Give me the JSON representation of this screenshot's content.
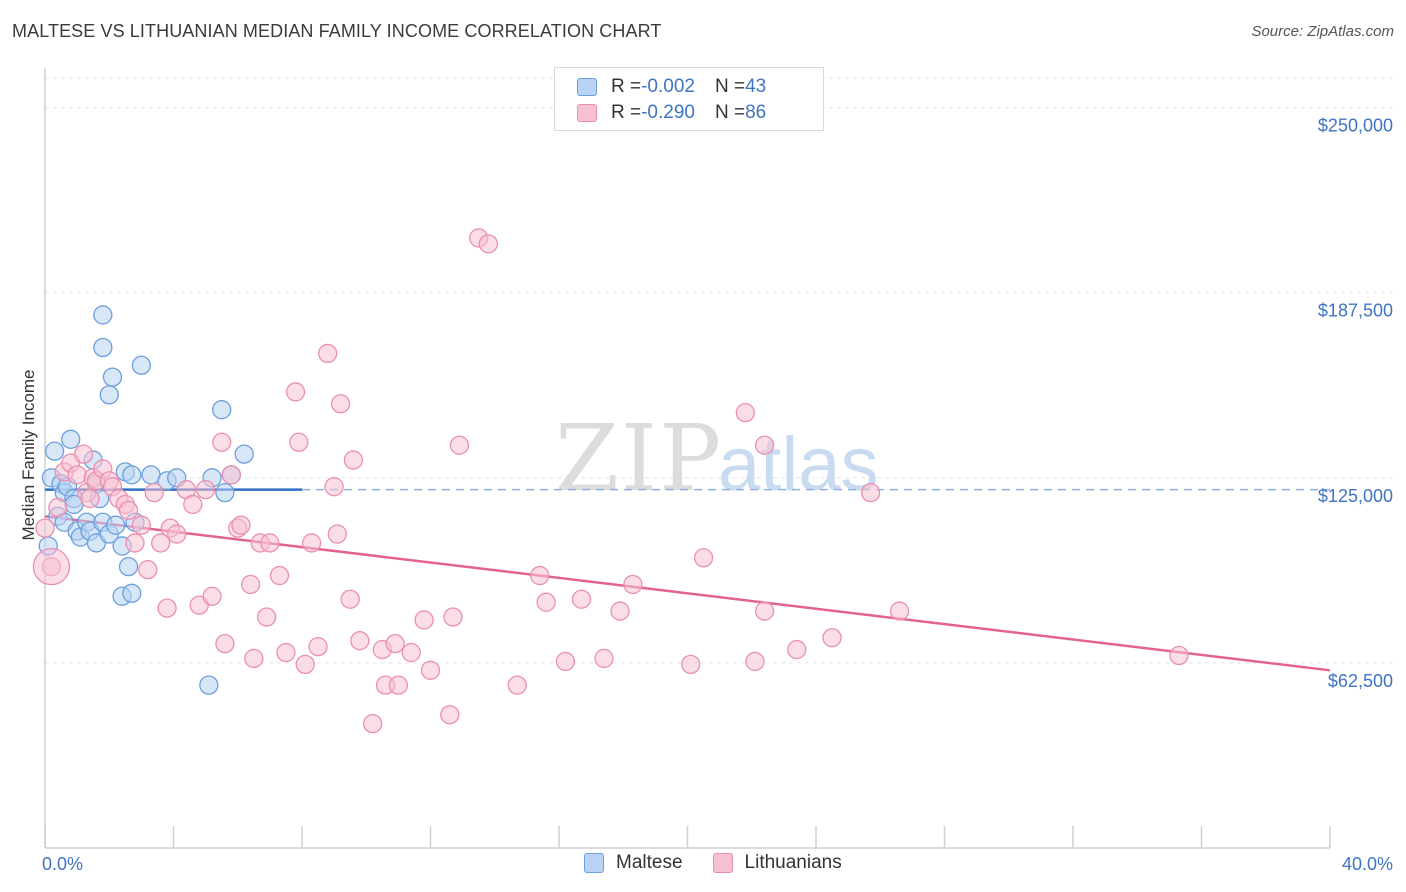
{
  "title": "MALTESE VS LITHUANIAN MEDIAN FAMILY INCOME CORRELATION CHART",
  "source": "Source: ZipAtlas.com",
  "watermark": {
    "zip": "ZIP",
    "atlas": "atlas"
  },
  "legend": {
    "rows": [
      {
        "r_label": "R = ",
        "r_value": "-0.002",
        "n_label": "N = ",
        "n_value": "43"
      },
      {
        "r_label": "R = ",
        "r_value": "-0.290",
        "n_label": "N = ",
        "n_value": "86"
      }
    ]
  },
  "colors": {
    "blue_fill": "#b8d3f3",
    "blue_stroke": "#6b9fdd",
    "blue_line": "#2f6fc4",
    "pink_fill": "#f7c1d2",
    "pink_stroke": "#ea8fb0",
    "pink_line": "#e2638f",
    "tick_text": "#3f74c4",
    "grid": "#e3e3e3"
  },
  "chart_data": {
    "type": "scatter",
    "title": "MALTESE VS LITHUANIAN MEDIAN FAMILY INCOME CORRELATION CHART",
    "xlabel": "",
    "ylabel": "Median Family Income",
    "xlim": [
      0,
      40
    ],
    "ylim": [
      0,
      260000
    ],
    "x_tick_labels": [
      "0.0%",
      "40.0%"
    ],
    "y_ticks": [
      62500,
      125000,
      187500,
      250000
    ],
    "y_tick_labels": [
      "$62,500",
      "$125,000",
      "$187,500",
      "$250,000"
    ],
    "grid": true,
    "legend_position": "top-center",
    "series": [
      {
        "name": "Maltese",
        "trend": {
          "x0": 0.0,
          "y0": 121000,
          "x1": 8.0,
          "y1": 121000,
          "dashed_to": 40.0
        },
        "points": [
          [
            0.1,
            102000
          ],
          [
            0.2,
            125000
          ],
          [
            0.3,
            134000
          ],
          [
            0.4,
            112000
          ],
          [
            0.5,
            123000
          ],
          [
            0.6,
            110000
          ],
          [
            0.6,
            120000
          ],
          [
            0.7,
            122000
          ],
          [
            0.8,
            138000
          ],
          [
            0.9,
            118000
          ],
          [
            1.0,
            107000
          ],
          [
            1.1,
            105000
          ],
          [
            1.3,
            110000
          ],
          [
            1.4,
            107000
          ],
          [
            1.5,
            131000
          ],
          [
            1.6,
            103000
          ],
          [
            1.6,
            123000
          ],
          [
            1.7,
            118000
          ],
          [
            1.8,
            110000
          ],
          [
            1.8,
            169000
          ],
          [
            2.0,
            106000
          ],
          [
            2.1,
            159000
          ],
          [
            2.2,
            109000
          ],
          [
            2.4,
            85000
          ],
          [
            2.4,
            102000
          ],
          [
            2.5,
            127000
          ],
          [
            2.6,
            95000
          ],
          [
            2.7,
            86000
          ],
          [
            2.8,
            110000
          ],
          [
            3.0,
            163000
          ],
          [
            3.3,
            126000
          ],
          [
            3.8,
            124000
          ],
          [
            4.1,
            125000
          ],
          [
            5.1,
            55000
          ],
          [
            5.2,
            125000
          ],
          [
            5.5,
            148000
          ],
          [
            5.6,
            120000
          ],
          [
            5.8,
            126000
          ],
          [
            6.2,
            133000
          ],
          [
            1.8,
            180000
          ],
          [
            2.0,
            153000
          ],
          [
            0.9,
            116000
          ],
          [
            2.7,
            126000
          ]
        ]
      },
      {
        "name": "Lithuanians",
        "trend": {
          "x0": 0.0,
          "y0": 112000,
          "x1": 40.0,
          "y1": 60000
        },
        "points": [
          [
            0.2,
            95000
          ],
          [
            0.4,
            115000
          ],
          [
            0.6,
            127000
          ],
          [
            0.8,
            130000
          ],
          [
            1.0,
            126000
          ],
          [
            1.2,
            133000
          ],
          [
            1.3,
            120000
          ],
          [
            1.5,
            125000
          ],
          [
            1.6,
            124000
          ],
          [
            1.8,
            128000
          ],
          [
            2.0,
            124000
          ],
          [
            2.1,
            122000
          ],
          [
            2.3,
            118000
          ],
          [
            2.5,
            116000
          ],
          [
            2.6,
            114000
          ],
          [
            2.8,
            103000
          ],
          [
            3.0,
            109000
          ],
          [
            3.2,
            94000
          ],
          [
            3.4,
            120000
          ],
          [
            3.6,
            103000
          ],
          [
            3.8,
            81000
          ],
          [
            3.9,
            108000
          ],
          [
            4.1,
            106000
          ],
          [
            4.4,
            121000
          ],
          [
            4.6,
            116000
          ],
          [
            4.8,
            82000
          ],
          [
            5.0,
            121000
          ],
          [
            5.2,
            85000
          ],
          [
            5.5,
            137000
          ],
          [
            5.6,
            69000
          ],
          [
            5.8,
            126000
          ],
          [
            6.0,
            108000
          ],
          [
            6.1,
            109000
          ],
          [
            6.4,
            89000
          ],
          [
            6.5,
            64000
          ],
          [
            6.7,
            103000
          ],
          [
            6.9,
            78000
          ],
          [
            7.0,
            103000
          ],
          [
            7.3,
            92000
          ],
          [
            7.5,
            66000
          ],
          [
            7.8,
            154000
          ],
          [
            7.9,
            137000
          ],
          [
            8.1,
            62000
          ],
          [
            8.3,
            103000
          ],
          [
            8.5,
            68000
          ],
          [
            8.8,
            167000
          ],
          [
            9.0,
            122000
          ],
          [
            9.1,
            106000
          ],
          [
            9.2,
            150000
          ],
          [
            9.5,
            84000
          ],
          [
            9.6,
            131000
          ],
          [
            9.8,
            70000
          ],
          [
            10.2,
            42000
          ],
          [
            10.5,
            67000
          ],
          [
            10.6,
            55000
          ],
          [
            10.9,
            69000
          ],
          [
            11.0,
            55000
          ],
          [
            11.4,
            66000
          ],
          [
            11.8,
            77000
          ],
          [
            12.0,
            60000
          ],
          [
            12.6,
            45000
          ],
          [
            12.7,
            78000
          ],
          [
            12.9,
            136000
          ],
          [
            13.5,
            206000
          ],
          [
            13.8,
            204000
          ],
          [
            14.7,
            55000
          ],
          [
            15.4,
            92000
          ],
          [
            15.6,
            83000
          ],
          [
            16.2,
            63000
          ],
          [
            16.7,
            84000
          ],
          [
            17.4,
            64000
          ],
          [
            17.9,
            80000
          ],
          [
            18.3,
            89000
          ],
          [
            20.1,
            62000
          ],
          [
            20.5,
            98000
          ],
          [
            21.8,
            147000
          ],
          [
            22.1,
            63000
          ],
          [
            22.4,
            136000
          ],
          [
            22.4,
            80000
          ],
          [
            23.4,
            67000
          ],
          [
            24.5,
            71000
          ],
          [
            25.7,
            120000
          ],
          [
            26.6,
            80000
          ],
          [
            35.3,
            65000
          ],
          [
            0.0,
            108000
          ],
          [
            1.4,
            118000
          ]
        ]
      }
    ]
  }
}
